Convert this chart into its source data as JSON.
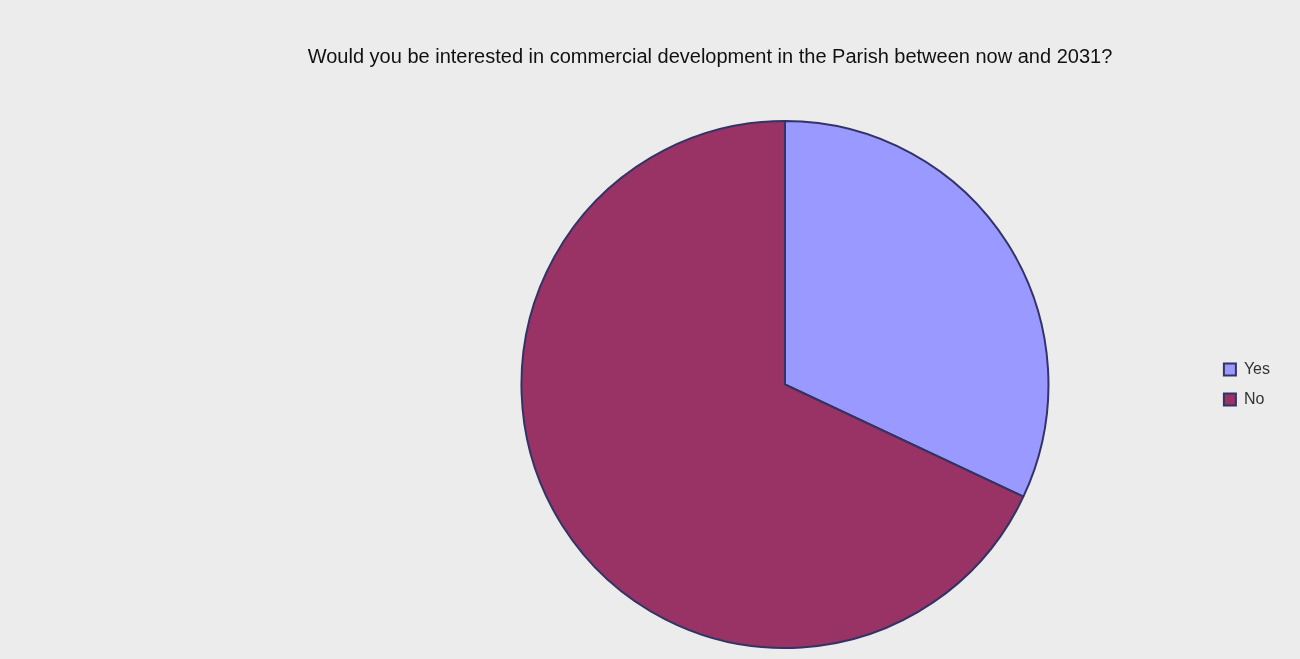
{
  "chart_data": {
    "type": "pie",
    "title": "Would you be interested in commercial development in the Parish between now and 2031?",
    "categories": [
      "Yes",
      "No"
    ],
    "values": [
      32,
      68
    ],
    "colors": [
      "#9999ff",
      "#993366"
    ],
    "legend": "right"
  }
}
